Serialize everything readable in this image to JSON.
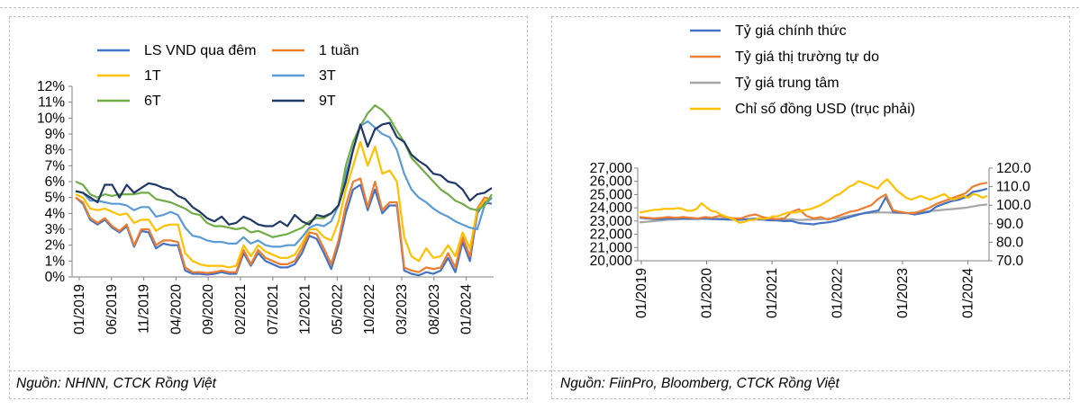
{
  "chart_data": [
    {
      "type": "line",
      "title": "",
      "ylim": [
        0,
        12
      ],
      "y_ticks": [
        "0%",
        "1%",
        "2%",
        "3%",
        "4%",
        "5%",
        "6%",
        "7%",
        "8%",
        "9%",
        "10%",
        "11%",
        "12%"
      ],
      "x_ticks": [
        "01/2019",
        "06/2019",
        "11/2019",
        "04/2020",
        "09/2020",
        "02/2021",
        "07/2021",
        "12/2021",
        "05/2022",
        "10/2022",
        "03/2023",
        "08/2023",
        "01/2024"
      ],
      "source": "Nguồn: NHNN, CTCK Rồng Việt",
      "series": [
        {
          "name": "LS VND qua đêm",
          "color": "#4472c4",
          "values": [
            5.0,
            4.6,
            3.6,
            3.3,
            3.6,
            3.1,
            2.8,
            3.2,
            1.9,
            2.9,
            2.8,
            1.8,
            2.1,
            2.0,
            2.0,
            0.4,
            0.2,
            0.2,
            0.15,
            0.2,
            0.3,
            0.2,
            0.2,
            1.5,
            0.7,
            1.5,
            1.0,
            0.8,
            0.6,
            0.6,
            0.8,
            1.5,
            2.6,
            2.4,
            1.5,
            0.5,
            2.0,
            4.0,
            5.5,
            5.8,
            4.2,
            5.5,
            4.0,
            4.5,
            4.5,
            0.4,
            0.2,
            0.1,
            0.3,
            0.2,
            0.4,
            1.2,
            0.3,
            2.2,
            1.0,
            4.0,
            4.7,
            4.6
          ]
        },
        {
          "name": "1 tuần",
          "color": "#ed7d31",
          "values": [
            5.0,
            4.7,
            3.7,
            3.4,
            3.7,
            3.2,
            2.9,
            3.3,
            2.0,
            3.0,
            3.0,
            2.0,
            2.3,
            2.3,
            2.2,
            0.6,
            0.3,
            0.3,
            0.25,
            0.3,
            0.4,
            0.3,
            0.3,
            1.7,
            0.8,
            1.7,
            1.2,
            1.0,
            0.8,
            0.8,
            1.0,
            1.8,
            2.8,
            2.7,
            1.8,
            0.8,
            2.3,
            4.5,
            6.0,
            6.2,
            4.4,
            6.0,
            4.2,
            4.7,
            4.7,
            0.6,
            0.4,
            0.3,
            0.6,
            0.5,
            0.6,
            1.5,
            0.6,
            2.5,
            1.3,
            4.3,
            5.0,
            4.9
          ]
        },
        {
          "name": "1T",
          "color": "#ffc000",
          "values": [
            5.2,
            5.0,
            4.3,
            4.2,
            4.3,
            4.1,
            3.9,
            4.0,
            3.4,
            3.6,
            3.6,
            2.9,
            3.2,
            3.3,
            3.3,
            1.5,
            1.0,
            0.8,
            0.7,
            0.7,
            0.7,
            0.6,
            0.7,
            2.0,
            1.3,
            2.0,
            1.6,
            1.4,
            1.2,
            1.2,
            1.4,
            2.1,
            3.0,
            3.0,
            2.5,
            2.3,
            3.5,
            5.5,
            7.0,
            8.5,
            7.0,
            8.2,
            6.5,
            6.7,
            6.0,
            2.5,
            1.3,
            1.0,
            1.8,
            1.2,
            1.3,
            2.0,
            1.3,
            2.8,
            1.8,
            4.2,
            4.8,
            5.0
          ]
        },
        {
          "name": "3T",
          "color": "#5b9bd5",
          "values": [
            5.4,
            5.3,
            4.8,
            4.8,
            4.7,
            4.6,
            4.6,
            4.5,
            4.2,
            4.4,
            4.4,
            3.8,
            3.9,
            4.1,
            3.9,
            3.1,
            2.6,
            2.5,
            2.3,
            2.2,
            2.2,
            2.1,
            2.1,
            2.5,
            2.1,
            2.3,
            2.0,
            1.9,
            1.9,
            2.0,
            2.0,
            2.5,
            3.1,
            3.3,
            3.2,
            3.5,
            4.5,
            6.5,
            8.0,
            9.5,
            9.8,
            9.4,
            9.0,
            8.8,
            8.0,
            6.5,
            5.5,
            5.0,
            4.7,
            4.3,
            4.0,
            3.8,
            3.5,
            3.3,
            3.1,
            3.0,
            4.5,
            5.0
          ]
        },
        {
          "name": "6T",
          "color": "#70ad47",
          "values": [
            6.0,
            5.8,
            5.2,
            5.0,
            5.2,
            5.1,
            5.2,
            5.2,
            5.2,
            5.3,
            5.3,
            4.9,
            4.8,
            4.7,
            4.5,
            4.3,
            4.0,
            3.9,
            3.4,
            3.2,
            3.2,
            3.1,
            3.0,
            3.1,
            2.8,
            2.9,
            2.7,
            2.5,
            2.6,
            2.7,
            2.9,
            3.1,
            3.5,
            3.7,
            3.7,
            4.0,
            4.5,
            7.0,
            8.5,
            9.5,
            10.3,
            10.8,
            10.5,
            10.0,
            9.2,
            8.5,
            7.5,
            7.0,
            6.5,
            6.0,
            5.5,
            5.2,
            4.8,
            4.6,
            4.3,
            4.2,
            4.5,
            5.2
          ]
        },
        {
          "name": "9T",
          "color": "#203864",
          "values": [
            5.4,
            5.3,
            5.0,
            4.7,
            5.8,
            5.8,
            5.0,
            5.8,
            5.3,
            5.6,
            5.9,
            5.8,
            5.6,
            5.5,
            5.1,
            4.9,
            4.4,
            4.1,
            3.7,
            3.5,
            3.8,
            3.3,
            3.4,
            3.8,
            3.6,
            3.3,
            3.2,
            3.2,
            3.5,
            3.2,
            3.9,
            3.5,
            3.3,
            3.9,
            3.8,
            4.0,
            4.5,
            6.0,
            8.0,
            9.6,
            8.2,
            9.3,
            9.6,
            9.7,
            8.8,
            8.5,
            7.7,
            7.3,
            7.0,
            6.5,
            6.4,
            6.0,
            5.9,
            5.5,
            4.8,
            5.2,
            5.3,
            5.6
          ]
        }
      ]
    },
    {
      "type": "line",
      "title": "",
      "ylim": [
        20000,
        27000
      ],
      "y2lim": [
        70,
        120
      ],
      "y_ticks": [
        "20,000",
        "21,000",
        "22,000",
        "23,000",
        "24,000",
        "25,000",
        "26,000",
        "27,000"
      ],
      "y2_ticks": [
        "70.0",
        "80.0",
        "90.0",
        "100.0",
        "110.0",
        "120.0"
      ],
      "x_ticks": [
        "01/2019",
        "01/2020",
        "01/2021",
        "01/2022",
        "01/2023",
        "01/2024"
      ],
      "source": "Nguồn: FiinPro, Bloomberg, CTCK Rồng Việt",
      "series": [
        {
          "name": "Tỷ giá chính thức",
          "color": "#4472c4",
          "axis": "left",
          "values": [
            23250,
            23200,
            23150,
            23150,
            23200,
            23180,
            23200,
            23170,
            23160,
            23180,
            23150,
            23140,
            23120,
            23100,
            23100,
            23150,
            23180,
            23120,
            23060,
            23050,
            23000,
            23010,
            22850,
            22800,
            22750,
            22850,
            22900,
            23000,
            23150,
            23300,
            23450,
            23600,
            23700,
            23800,
            24800,
            23700,
            23650,
            23600,
            23500,
            23600,
            23700,
            24100,
            24300,
            24500,
            24600,
            24800,
            25200,
            25300,
            25450
          ]
        },
        {
          "name": "Tỷ giá thị trường tự do",
          "color": "#ed7d31",
          "axis": "left",
          "values": [
            23300,
            23250,
            23200,
            23250,
            23300,
            23250,
            23300,
            23250,
            23200,
            23300,
            23250,
            23400,
            23300,
            23200,
            23200,
            23400,
            23500,
            23300,
            23200,
            23150,
            23200,
            23700,
            23900,
            23400,
            23200,
            23300,
            23100,
            23300,
            23500,
            23700,
            23800,
            24000,
            24200,
            24700,
            25000,
            23800,
            23700,
            23600,
            23600,
            23800,
            24000,
            24300,
            24500,
            24700,
            24900,
            25100,
            25600,
            25800,
            25900
          ]
        },
        {
          "name": "Tỷ giá trung tâm",
          "color": "#a6a6a6",
          "axis": "left",
          "values": [
            22900,
            22950,
            23000,
            23050,
            23100,
            23120,
            23150,
            23150,
            23180,
            23200,
            23220,
            23180,
            23200,
            23180,
            23150,
            23130,
            23120,
            23100,
            23080,
            23070,
            23100,
            23150,
            23080,
            23100,
            23120,
            23140,
            23170,
            23200,
            23300,
            23400,
            23500,
            23580,
            23620,
            23650,
            23650,
            23620,
            23600,
            23600,
            23640,
            23700,
            23750,
            23800,
            23850,
            23900,
            23950,
            24000,
            24100,
            24200,
            24250
          ]
        },
        {
          "name": "Chỉ số đồng USD (trục phải)",
          "color": "#ffc000",
          "axis": "right",
          "values": [
            96,
            96.5,
            97,
            97.5,
            97.5,
            98,
            98,
            98,
            98.5,
            98,
            97,
            97,
            98,
            101,
            99,
            97,
            96.5,
            95,
            94,
            93,
            92,
            90.5,
            91,
            92,
            92,
            93,
            92.5,
            93,
            94,
            94,
            95,
            96,
            96,
            96,
            97,
            97.5,
            98,
            99,
            100,
            101.5,
            103,
            105,
            106,
            108,
            110,
            111,
            113,
            112,
            111,
            110,
            109,
            112,
            114,
            111,
            108,
            106,
            104,
            103,
            104,
            105,
            104,
            103,
            104,
            105,
            106,
            104,
            103,
            104,
            105,
            104,
            106,
            105.5,
            104,
            105
          ]
        }
      ]
    }
  ]
}
